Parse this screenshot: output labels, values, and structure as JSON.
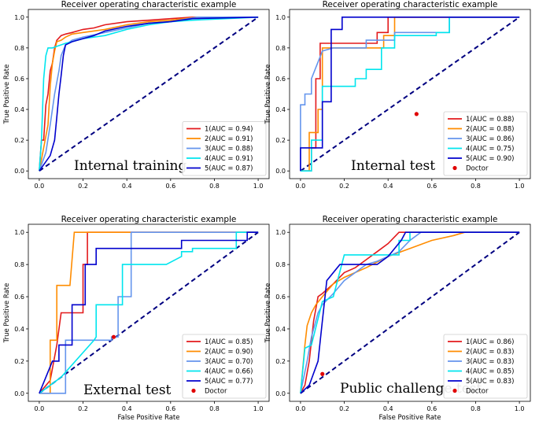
{
  "chart_data": [
    {
      "type": "line",
      "title": "Receiver operating characteristic example",
      "xlabel": "",
      "ylabel": "True Positive Rate",
      "xlim": [
        0,
        1
      ],
      "ylim": [
        0,
        1
      ],
      "xticks": [
        "0.0",
        "0.2",
        "0.4",
        "0.6",
        "0.8",
        "1.0"
      ],
      "yticks": [
        "0.0",
        "0.2",
        "0.4",
        "0.6",
        "0.8",
        "1.0"
      ],
      "annotation": "Internal training",
      "legend_position": "lower-right",
      "series": [
        {
          "name": "1(AUC = 0.94)",
          "color": "#e31a1c",
          "x": [
            0,
            0.01,
            0.02,
            0.03,
            0.04,
            0.05,
            0.06,
            0.07,
            0.08,
            0.1,
            0.12,
            0.15,
            0.2,
            0.25,
            0.3,
            0.4,
            0.5,
            0.6,
            0.7,
            1
          ],
          "y": [
            0,
            0.2,
            0.2,
            0.43,
            0.5,
            0.65,
            0.7,
            0.8,
            0.85,
            0.88,
            0.89,
            0.9,
            0.92,
            0.93,
            0.95,
            0.97,
            0.98,
            0.99,
            1,
            1
          ]
        },
        {
          "name": "2(AUC = 0.91)",
          "color": "#ff8c00",
          "x": [
            0,
            0.02,
            0.04,
            0.05,
            0.06,
            0.07,
            0.08,
            0.1,
            0.12,
            0.15,
            0.2,
            0.3,
            0.4,
            0.5,
            0.6,
            0.72,
            1
          ],
          "y": [
            0,
            0.15,
            0.3,
            0.55,
            0.7,
            0.78,
            0.84,
            0.85,
            0.87,
            0.89,
            0.9,
            0.92,
            0.95,
            0.97,
            0.98,
            1,
            1
          ]
        },
        {
          "name": "3(AUC = 0.88)",
          "color": "#6495ed",
          "x": [
            0,
            0.03,
            0.05,
            0.07,
            0.09,
            0.1,
            0.12,
            0.15,
            0.2,
            0.3,
            0.4,
            0.5,
            0.6,
            0.72,
            1
          ],
          "y": [
            0,
            0.12,
            0.3,
            0.5,
            0.65,
            0.75,
            0.82,
            0.85,
            0.87,
            0.9,
            0.93,
            0.96,
            0.97,
            1,
            1
          ]
        },
        {
          "name": "4(AUC = 0.91)",
          "color": "#00e5ee",
          "x": [
            0,
            0.01,
            0.02,
            0.03,
            0.04,
            0.06,
            0.08,
            0.1,
            0.12,
            0.15,
            0.2,
            0.3,
            0.4,
            0.5,
            0.6,
            0.7,
            1
          ],
          "y": [
            0,
            0.2,
            0.6,
            0.75,
            0.8,
            0.8,
            0.81,
            0.82,
            0.83,
            0.84,
            0.86,
            0.88,
            0.92,
            0.95,
            0.97,
            0.98,
            1
          ]
        },
        {
          "name": "5(AUC = 0.87)",
          "color": "#0000cd",
          "x": [
            0,
            0.05,
            0.07,
            0.08,
            0.09,
            0.1,
            0.11,
            0.12,
            0.15,
            0.2,
            0.25,
            0.3,
            0.4,
            0.5,
            0.6,
            0.7,
            1
          ],
          "y": [
            0,
            0.1,
            0.2,
            0.35,
            0.5,
            0.62,
            0.75,
            0.82,
            0.84,
            0.86,
            0.88,
            0.91,
            0.94,
            0.96,
            0.97,
            0.99,
            1
          ]
        }
      ],
      "reference_line": [
        [
          0,
          0
        ],
        [
          1,
          1
        ]
      ]
    },
    {
      "type": "line",
      "title": "Receiver operating characteristic example",
      "xlabel": "",
      "ylabel": "True Positive Rate",
      "xlim": [
        0,
        1
      ],
      "ylim": [
        0,
        1
      ],
      "xticks": [
        "0.0",
        "0.2",
        "0.4",
        "0.6",
        "0.8",
        "1.0"
      ],
      "yticks": [
        "0.0",
        "0.2",
        "0.4",
        "0.6",
        "0.8",
        "1.0"
      ],
      "annotation": "Internal test",
      "legend_position": "lower-right",
      "series": [
        {
          "name": "1(AUC = 0.88)",
          "color": "#e31a1c",
          "x": [
            0,
            0.05,
            0.05,
            0.07,
            0.07,
            0.09,
            0.09,
            0.35,
            0.35,
            0.4,
            0.4,
            1
          ],
          "y": [
            0,
            0,
            0.15,
            0.15,
            0.6,
            0.6,
            0.83,
            0.83,
            0.9,
            0.9,
            1,
            1
          ]
        },
        {
          "name": "2(AUC = 0.88)",
          "color": "#ff8c00",
          "x": [
            0,
            0.04,
            0.04,
            0.08,
            0.08,
            0.1,
            0.1,
            0.38,
            0.38,
            0.43,
            0.43,
            1
          ],
          "y": [
            0,
            0,
            0.25,
            0.25,
            0.4,
            0.4,
            0.8,
            0.8,
            0.88,
            0.88,
            1,
            1
          ]
        },
        {
          "name": "3(AUC = 0.86)",
          "color": "#6495ed",
          "x": [
            0,
            0,
            0.02,
            0.02,
            0.05,
            0.05,
            0.1,
            0.15,
            0.3,
            0.3,
            0.43,
            0.43,
            0.68,
            0.68,
            0.95,
            1
          ],
          "y": [
            0,
            0.43,
            0.43,
            0.5,
            0.5,
            0.6,
            0.78,
            0.8,
            0.8,
            0.85,
            0.85,
            0.9,
            0.9,
            1,
            1,
            1
          ]
        },
        {
          "name": "4(AUC = 0.75)",
          "color": "#00e5ee",
          "x": [
            0,
            0.05,
            0.05,
            0.1,
            0.1,
            0.25,
            0.25,
            0.3,
            0.3,
            0.37,
            0.37,
            0.43,
            0.43,
            0.62,
            0.62,
            0.68,
            0.68,
            1
          ],
          "y": [
            0,
            0,
            0.2,
            0.2,
            0.55,
            0.55,
            0.6,
            0.6,
            0.66,
            0.66,
            0.8,
            0.8,
            0.88,
            0.88,
            0.9,
            0.9,
            1,
            1
          ]
        },
        {
          "name": "5(AUC = 0.90)",
          "color": "#0000cd",
          "x": [
            0,
            0,
            0.1,
            0.1,
            0.14,
            0.14,
            0.19,
            0.19,
            1
          ],
          "y": [
            0,
            0.15,
            0.15,
            0.45,
            0.45,
            0.92,
            0.92,
            1,
            1
          ]
        }
      ],
      "points": [
        {
          "name": "Doctor",
          "color": "#e00000",
          "x": 0.53,
          "y": 0.37
        }
      ],
      "reference_line": [
        [
          0,
          0
        ],
        [
          1,
          1
        ]
      ]
    },
    {
      "type": "line",
      "title": "Receiver operating characteristic example",
      "xlabel": "False Positive Rate",
      "ylabel": "True Positive Rate",
      "xlim": [
        0,
        1
      ],
      "ylim": [
        0,
        1
      ],
      "xticks": [
        "0.0",
        "0.2",
        "0.4",
        "0.6",
        "0.8",
        "1.0"
      ],
      "yticks": [
        "0.0",
        "0.2",
        "0.4",
        "0.6",
        "0.8",
        "1.0"
      ],
      "annotation": "External test",
      "legend_position": "lower-right",
      "series": [
        {
          "name": "1(AUC = 0.85)",
          "color": "#e31a1c",
          "x": [
            0,
            0.05,
            0.08,
            0.1,
            0.1,
            0.2,
            0.2,
            0.22,
            0.22,
            1
          ],
          "y": [
            0,
            0.08,
            0.3,
            0.5,
            0.5,
            0.5,
            0.8,
            0.8,
            1,
            1
          ]
        },
        {
          "name": "2(AUC = 0.90)",
          "color": "#ff8c00",
          "x": [
            0,
            0.05,
            0.05,
            0.08,
            0.08,
            0.14,
            0.16,
            1
          ],
          "y": [
            0,
            0,
            0.33,
            0.33,
            0.67,
            0.67,
            1,
            1
          ]
        },
        {
          "name": "3(AUC = 0.70)",
          "color": "#6495ed",
          "x": [
            0,
            0.12,
            0.12,
            0.33,
            0.33,
            0.36,
            0.36,
            0.42,
            0.42,
            1
          ],
          "y": [
            0,
            0,
            0.33,
            0.33,
            0.35,
            0.35,
            0.6,
            0.6,
            1,
            1
          ]
        },
        {
          "name": "4(AUC = 0.66)",
          "color": "#00e5ee",
          "x": [
            0,
            0.1,
            0.25,
            0.26,
            0.26,
            0.38,
            0.38,
            0.58,
            0.65,
            0.65,
            0.7,
            0.7,
            0.9,
            0.9,
            1
          ],
          "y": [
            0,
            0.1,
            0.33,
            0.35,
            0.55,
            0.55,
            0.8,
            0.8,
            0.85,
            0.88,
            0.88,
            0.9,
            0.9,
            1,
            1
          ]
        },
        {
          "name": "5(AUC = 0.77)",
          "color": "#0000cd",
          "x": [
            0,
            0.03,
            0.06,
            0.09,
            0.09,
            0.15,
            0.15,
            0.21,
            0.21,
            0.26,
            0.26,
            0.35,
            0.35,
            0.65,
            0.65,
            0.95,
            0.95,
            1
          ],
          "y": [
            0,
            0.1,
            0.2,
            0.2,
            0.3,
            0.3,
            0.55,
            0.55,
            0.8,
            0.8,
            0.9,
            0.9,
            0.9,
            0.9,
            0.95,
            0.95,
            1,
            1
          ]
        }
      ],
      "points": [
        {
          "name": "Doctor",
          "color": "#e00000",
          "x": 0.34,
          "y": 0.35
        }
      ],
      "reference_line": [
        [
          0,
          0
        ],
        [
          1,
          1
        ]
      ]
    },
    {
      "type": "line",
      "title": "Receiver operating characteristic example",
      "xlabel": "False Positive Rate",
      "ylabel": "True Positive Rate",
      "xlim": [
        0,
        1
      ],
      "ylim": [
        0,
        1
      ],
      "xticks": [
        "0.0",
        "0.2",
        "0.4",
        "0.6",
        "0.8",
        "1.0"
      ],
      "yticks": [
        "0.0",
        "0.2",
        "0.4",
        "0.6",
        "0.8",
        "1.0"
      ],
      "annotation": "Public challenge test",
      "legend_position": "lower-right",
      "series": [
        {
          "name": "1(AUC = 0.86)",
          "color": "#e31a1c",
          "x": [
            0,
            0.02,
            0.04,
            0.06,
            0.08,
            0.1,
            0.15,
            0.2,
            0.25,
            0.3,
            0.35,
            0.4,
            0.45,
            0.5,
            1
          ],
          "y": [
            0,
            0.05,
            0.2,
            0.45,
            0.6,
            0.62,
            0.68,
            0.75,
            0.78,
            0.83,
            0.88,
            0.93,
            1,
            1,
            1
          ]
        },
        {
          "name": "2(AUC = 0.83)",
          "color": "#ff8c00",
          "x": [
            0,
            0.02,
            0.03,
            0.05,
            0.07,
            0.1,
            0.15,
            0.2,
            0.3,
            0.4,
            0.5,
            0.6,
            0.7,
            0.75,
            1
          ],
          "y": [
            0,
            0.3,
            0.42,
            0.5,
            0.55,
            0.6,
            0.68,
            0.72,
            0.78,
            0.85,
            0.9,
            0.95,
            0.98,
            1,
            1
          ]
        },
        {
          "name": "3(AUC = 0.83)",
          "color": "#6495ed",
          "x": [
            0,
            0.03,
            0.05,
            0.08,
            0.1,
            0.15,
            0.2,
            0.25,
            0.3,
            0.35,
            0.4,
            0.45,
            0.5,
            0.55,
            1
          ],
          "y": [
            0,
            0.2,
            0.35,
            0.5,
            0.55,
            0.62,
            0.7,
            0.75,
            0.8,
            0.82,
            0.85,
            0.88,
            0.95,
            1,
            1
          ]
        },
        {
          "name": "4(AUC = 0.85)",
          "color": "#00e5ee",
          "x": [
            0,
            0.02,
            0.05,
            0.1,
            0.15,
            0.2,
            0.3,
            0.4,
            0.45,
            0.45,
            0.5,
            0.5,
            0.55,
            1
          ],
          "y": [
            0,
            0.28,
            0.3,
            0.57,
            0.6,
            0.86,
            0.86,
            0.86,
            0.86,
            0.95,
            0.95,
            1,
            1,
            1
          ]
        },
        {
          "name": "5(AUC = 0.83)",
          "color": "#0000cd",
          "x": [
            0,
            0.04,
            0.08,
            0.1,
            0.12,
            0.18,
            0.25,
            0.35,
            0.4,
            0.46,
            0.48,
            1
          ],
          "y": [
            0,
            0.05,
            0.2,
            0.45,
            0.7,
            0.8,
            0.8,
            0.8,
            0.85,
            0.95,
            1,
            1
          ]
        }
      ],
      "points": [
        {
          "name": "Doctor",
          "color": "#e00000",
          "x": 0.1,
          "y": 0.12
        }
      ],
      "reference_line": [
        [
          0,
          0
        ],
        [
          1,
          1
        ]
      ]
    }
  ]
}
